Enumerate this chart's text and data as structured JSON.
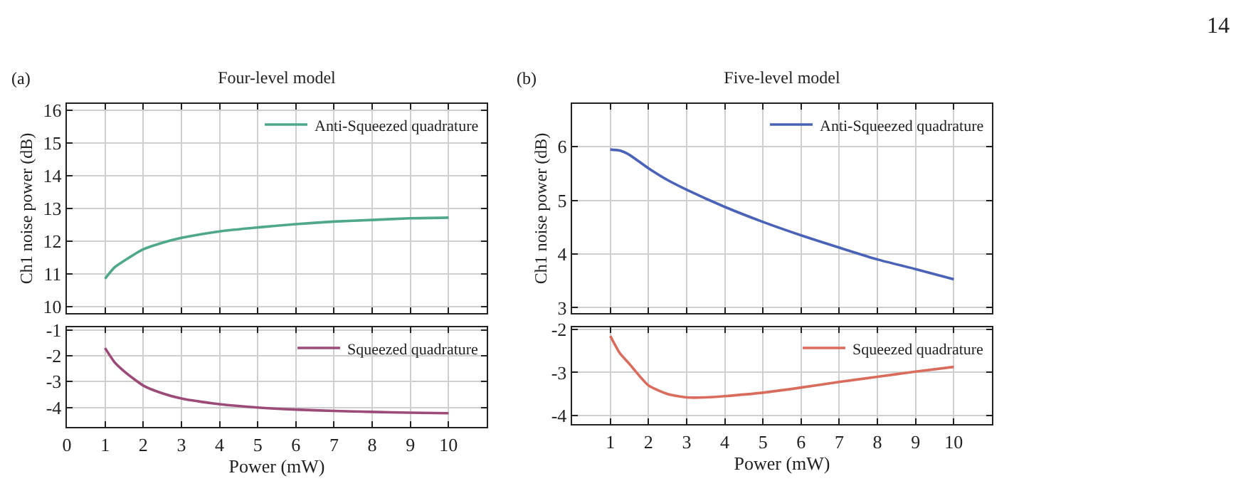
{
  "chart_data": [
    {
      "type": "line",
      "title": "Four-level model",
      "ylabel": "Ch1 noise power (dB)",
      "annotations": [
        "(a)",
        "14"
      ],
      "xlim": [
        0,
        11
      ],
      "xticks": [
        0,
        1,
        2,
        3,
        4,
        5,
        6,
        7,
        8,
        9,
        10
      ],
      "ylim": [
        9.8,
        16.2
      ],
      "yticks": [
        10,
        11,
        12,
        13,
        14,
        15,
        16
      ],
      "tick_labels": "y",
      "grid": true,
      "legend": "top right",
      "marker": "none",
      "line_style": "solid",
      "x": [
        1,
        1.25,
        1.5,
        2,
        2.5,
        3,
        4,
        5,
        6,
        7,
        8,
        9,
        10
      ],
      "series": [
        {
          "name": "Anti-Squeezed quadrature",
          "color": "#4fa88a",
          "values": [
            10.85,
            11.2,
            11.4,
            11.75,
            11.95,
            12.1,
            12.3,
            12.42,
            12.52,
            12.6,
            12.65,
            12.7,
            12.72
          ]
        }
      ]
    },
    {
      "type": "line",
      "xlabel": "Power (mW)",
      "xlim": [
        0,
        11
      ],
      "xticks": [
        0,
        1,
        2,
        3,
        4,
        5,
        6,
        7,
        8,
        9,
        10
      ],
      "ylim": [
        -4.75,
        -0.9
      ],
      "yticks": [
        -1,
        -2,
        -3,
        -4
      ],
      "grid": true,
      "legend": "top right",
      "marker": "none",
      "line_style": "solid",
      "x": [
        1,
        1.25,
        1.5,
        2,
        2.5,
        3,
        4,
        5,
        6,
        7,
        8,
        9,
        10
      ],
      "series": [
        {
          "name": "Squeezed quadrature",
          "color": "#9c4a78",
          "values": [
            -1.7,
            -2.25,
            -2.6,
            -3.15,
            -3.45,
            -3.65,
            -3.87,
            -4.0,
            -4.08,
            -4.13,
            -4.17,
            -4.2,
            -4.22
          ]
        }
      ]
    },
    {
      "type": "line",
      "title": "Five-level model",
      "ylabel": "Ch1 noise power (dB)",
      "annotations": [
        "(b)"
      ],
      "xlim": [
        0,
        11
      ],
      "xticks": [
        1,
        2,
        3,
        4,
        5,
        6,
        7,
        8,
        9,
        10
      ],
      "ylim": [
        2.9,
        6.8
      ],
      "yticks": [
        3,
        4,
        5,
        6
      ],
      "tick_labels": "y",
      "grid": true,
      "legend": "top right",
      "marker": "none",
      "line_style": "solid",
      "x": [
        1,
        1.25,
        1.5,
        2,
        2.5,
        3,
        4,
        5,
        6,
        7,
        8,
        9,
        10
      ],
      "series": [
        {
          "name": "Anti-Squeezed quadrature",
          "color": "#4a62b8",
          "values": [
            5.95,
            5.93,
            5.85,
            5.6,
            5.38,
            5.2,
            4.88,
            4.6,
            4.35,
            4.12,
            3.9,
            3.72,
            3.53
          ]
        }
      ]
    },
    {
      "type": "line",
      "xlabel": "Power (mW)",
      "xlim": [
        0,
        11
      ],
      "xticks": [
        1,
        2,
        3,
        4,
        5,
        6,
        7,
        8,
        9,
        10
      ],
      "ylim": [
        -4.2,
        -1.95
      ],
      "yticks": [
        -2,
        -3,
        -4
      ],
      "grid": true,
      "legend": "top right",
      "marker": "none",
      "line_style": "solid",
      "x": [
        1,
        1.25,
        1.5,
        2,
        2.5,
        3,
        3.5,
        4,
        5,
        6,
        7,
        8,
        9,
        10
      ],
      "series": [
        {
          "name": "Squeezed quadrature",
          "color": "#d96c5c",
          "values": [
            -2.15,
            -2.55,
            -2.8,
            -3.3,
            -3.5,
            -3.58,
            -3.58,
            -3.55,
            -3.47,
            -3.35,
            -3.22,
            -3.1,
            -2.98,
            -2.87
          ]
        }
      ]
    }
  ]
}
